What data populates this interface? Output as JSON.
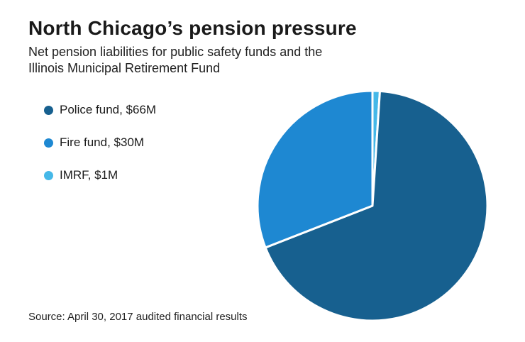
{
  "title": "North Chicago’s pension pressure",
  "subtitle": "Net pension liabilities for public safety funds and the Illinois Municipal Retirement Fund",
  "source": "Source: April 30, 2017 audited financial results",
  "chart_data": {
    "type": "pie",
    "title": "North Chicago’s pension pressure",
    "subtitle": "Net pension liabilities for public safety funds and the Illinois Municipal Retirement Fund",
    "unit": "$M",
    "total": 97,
    "slices": [
      {
        "name": "Police fund",
        "label": "Police fund, $66M",
        "value": 66,
        "color": "#17608f"
      },
      {
        "name": "Fire fund",
        "label": "Fire fund, $30M",
        "value": 30,
        "color": "#1e88d2"
      },
      {
        "name": "IMRF",
        "label": "IMRF, $1M",
        "value": 1,
        "color": "#45b8e8"
      }
    ],
    "draw_order_indices": [
      2,
      0,
      1
    ],
    "start_angle_deg": 0,
    "direction": "clockwise",
    "legend_position": "left",
    "slice_gap_color": "#ffffff",
    "source_note": "Source: April 30, 2017 audited financial results"
  }
}
